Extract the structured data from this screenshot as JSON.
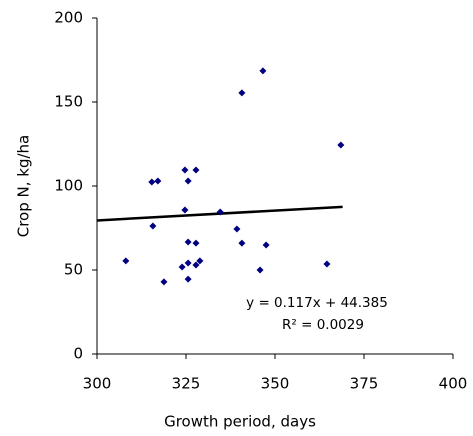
{
  "chart_data": {
    "type": "scatter",
    "x_label": "Growth period, days",
    "y_label": "Crop N, kg/ha",
    "xlim": [
      300,
      400
    ],
    "xticks": [
      300,
      325,
      350,
      375,
      400
    ],
    "ylim": [
      0,
      200
    ],
    "yticks": [
      0,
      50,
      100,
      150,
      200
    ],
    "color": "#000080",
    "x": [
      308.1,
      318.8,
      315.7,
      315.4,
      317.1,
      323.9,
      324.7,
      324.7,
      325.6,
      325.6,
      325.6,
      325.6,
      327.8,
      327.8,
      327.8,
      328.9,
      334.6,
      339.3,
      340.7,
      340.7,
      345.8,
      346.6,
      347.5,
      364.6,
      368.5
    ],
    "values": [
      55.4,
      42.9,
      76.2,
      102.4,
      103,
      51.8,
      85.7,
      109.5,
      103,
      66.7,
      54.2,
      44.6,
      66,
      109.5,
      53,
      55.4,
      84.5,
      74.4,
      155.4,
      66,
      50,
      168.5,
      64.9,
      53.6,
      124.4
    ],
    "trendline": {
      "x": [
        300,
        369
      ],
      "values": [
        79.5,
        87.6
      ],
      "color": "#000000"
    },
    "annotations": [
      "y = 0.117x + 44.385",
      "R² = 0.0029"
    ]
  }
}
